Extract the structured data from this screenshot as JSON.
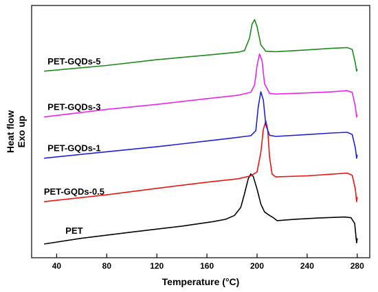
{
  "chart_data": {
    "type": "line",
    "title": "",
    "xlabel": "Temperature (°C)",
    "ylabel_lines": [
      "Heat flow",
      "Exo up"
    ],
    "xlim": [
      20,
      290
    ],
    "ylim": [
      0,
      100
    ],
    "xticks": [
      40,
      80,
      120,
      160,
      200,
      240,
      280
    ],
    "yticks_shown": false,
    "grid": false,
    "legend": "inline labels left of curves",
    "series": [
      {
        "name": "PET",
        "color": "#000000",
        "label_at": [
          54,
          4.5
        ],
        "points": [
          [
            30,
            0
          ],
          [
            60,
            2.5
          ],
          [
            100,
            5.2
          ],
          [
            140,
            7.8
          ],
          [
            165,
            9.8
          ],
          [
            175,
            10.8
          ],
          [
            182,
            12.5
          ],
          [
            187,
            16
          ],
          [
            190,
            22
          ],
          [
            193,
            28.5
          ],
          [
            195,
            30.6
          ],
          [
            197,
            29.5
          ],
          [
            200,
            24
          ],
          [
            203,
            17.5
          ],
          [
            206,
            14
          ],
          [
            210,
            12.5
          ],
          [
            213,
            11.5
          ],
          [
            216,
            10.2
          ],
          [
            230,
            10.8
          ],
          [
            250,
            11.4
          ],
          [
            270,
            11.8
          ],
          [
            275,
            11.5
          ],
          [
            278,
            9
          ],
          [
            279,
            3
          ],
          [
            279.5,
            0.5
          ],
          [
            280,
            2.5
          ]
        ]
      },
      {
        "name": "PET-GQDs-0.5",
        "color": "#ee1111",
        "label_at": [
          54,
          21.5
        ],
        "points": [
          [
            30,
            18.5
          ],
          [
            80,
            21.5
          ],
          [
            120,
            24.3
          ],
          [
            160,
            27
          ],
          [
            185,
            28.5
          ],
          [
            195,
            29.8
          ],
          [
            200,
            31.5
          ],
          [
            203,
            40
          ],
          [
            205,
            50
          ],
          [
            207,
            53.8
          ],
          [
            208.5,
            50
          ],
          [
            210,
            38
          ],
          [
            212,
            30.5
          ],
          [
            215,
            29.3
          ],
          [
            240,
            29.8
          ],
          [
            260,
            30.5
          ],
          [
            272,
            31
          ],
          [
            276,
            30
          ],
          [
            278.5,
            24
          ],
          [
            279.5,
            18.5
          ],
          [
            280,
            20.5
          ]
        ]
      },
      {
        "name": "PET-GQDs-1",
        "color": "#1f1fd6",
        "label_at": [
          54,
          40.5
        ],
        "points": [
          [
            30,
            37.5
          ],
          [
            80,
            40.3
          ],
          [
            120,
            42.5
          ],
          [
            160,
            45
          ],
          [
            180,
            46.3
          ],
          [
            195,
            47.3
          ],
          [
            199,
            49.5
          ],
          [
            201,
            60
          ],
          [
            203,
            66.5
          ],
          [
            205,
            63
          ],
          [
            207,
            52
          ],
          [
            210,
            47.5
          ],
          [
            215,
            47
          ],
          [
            240,
            47.8
          ],
          [
            260,
            48.5
          ],
          [
            272,
            48.8
          ],
          [
            276,
            47.8
          ],
          [
            278.5,
            42
          ],
          [
            279.5,
            37.5
          ],
          [
            280,
            39
          ]
        ]
      },
      {
        "name": "PET-GQDs-3",
        "color": "#ee22ee",
        "label_at": [
          54,
          58.5
        ],
        "points": [
          [
            30,
            55.5
          ],
          [
            80,
            58.8
          ],
          [
            120,
            61
          ],
          [
            160,
            63.5
          ],
          [
            185,
            65
          ],
          [
            195,
            66.3
          ],
          [
            198,
            69.5
          ],
          [
            200,
            78
          ],
          [
            202,
            83
          ],
          [
            204,
            80
          ],
          [
            206,
            70
          ],
          [
            210,
            65.8
          ],
          [
            215,
            65.5
          ],
          [
            240,
            66
          ],
          [
            260,
            66.5
          ],
          [
            272,
            67
          ],
          [
            276,
            66.2
          ],
          [
            278.5,
            60
          ],
          [
            279.5,
            55.5
          ],
          [
            280,
            56.5
          ]
        ]
      },
      {
        "name": "PET-GQDs-5",
        "color": "#1a8a1a",
        "label_at": [
          54,
          78.5
        ],
        "points": [
          [
            30,
            75.5
          ],
          [
            80,
            78
          ],
          [
            120,
            80.5
          ],
          [
            160,
            82.5
          ],
          [
            185,
            83.8
          ],
          [
            190,
            84.5
          ],
          [
            194,
            90
          ],
          [
            196,
            96
          ],
          [
            198,
            98
          ],
          [
            200,
            95
          ],
          [
            203,
            87
          ],
          [
            207,
            84.2
          ],
          [
            215,
            84
          ],
          [
            240,
            84.8
          ],
          [
            260,
            85.5
          ],
          [
            272,
            85.8
          ],
          [
            276,
            85
          ],
          [
            278.5,
            79
          ],
          [
            279.5,
            75.5
          ],
          [
            280,
            76.5
          ]
        ]
      }
    ]
  }
}
